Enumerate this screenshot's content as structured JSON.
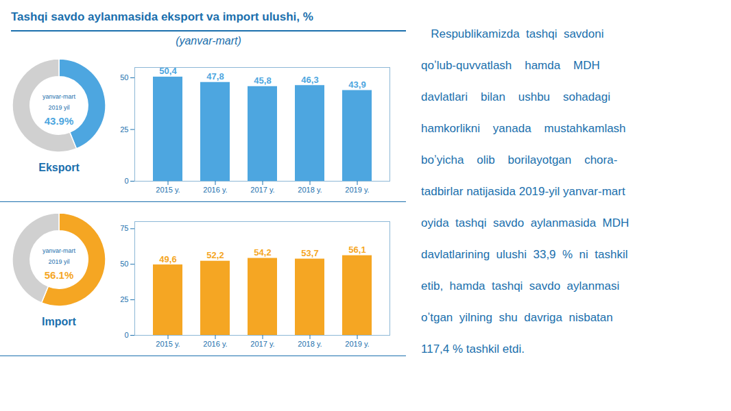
{
  "title": "Tashqi savdo aylanmasida eksport va import ulushi, %",
  "subtitle": "(yanvar-mart)",
  "annotations": [
    "   Respublikamizda  tashqi  savdoni",
    "qoʼlub-quvvatlash    hamda    MDH",
    "davlatlari    bilan    ushbu    sohadagi",
    "hamkorlikni    yanada    mustahkamlash",
    "boʼyicha    olib    borilayotgan    chora-",
    "tadbirlar natijasida 2019-yil yanvar-mart",
    "oyida  tashqi  savdo  aylanmasida  MDH",
    "davlatlarining  ulushi  33,9  %  ni  tashkil",
    "etib,  hamda  tashqi  savdo  aylanmasi",
    "oʼtgan  yilning  shu  davriga  nisbatan",
    "117,4 % tashkil etdi."
  ],
  "chart_data": [
    {
      "type": "pie",
      "title": "Eksport",
      "values": [
        43.9,
        56.1
      ],
      "colors": [
        "#4da6e0",
        "#d0d0d0"
      ],
      "value_labels": [
        "43.9%",
        null
      ],
      "annotations": [
        "yanvar-mart",
        "2019 yil"
      ]
    },
    {
      "type": "bar",
      "categories": [
        "2015 y.",
        "2016 y.",
        "2017 y.",
        "2018 y.",
        "2019 y."
      ],
      "values": [
        50.4,
        47.8,
        45.8,
        46.3,
        43.9
      ],
      "color": "#4da6e0",
      "ylim": [
        0,
        55
      ],
      "yticks": [
        0,
        25,
        50
      ],
      "grid": false,
      "data_labels": true,
      "value_labels": [
        "50,4",
        "47,8",
        "45,8",
        "46,3",
        "43,9"
      ]
    },
    {
      "type": "pie",
      "title": "Import",
      "values": [
        56.1,
        43.9
      ],
      "colors": [
        "#f5a623",
        "#d0d0d0"
      ],
      "value_labels": [
        "56.1%",
        null
      ],
      "annotations": [
        "yanvar-mart",
        "2019 yil"
      ]
    },
    {
      "type": "bar",
      "categories": [
        "2015 y.",
        "2016 y.",
        "2017 y.",
        "2018 y.",
        "2019 y."
      ],
      "values": [
        49.6,
        52.2,
        54.2,
        53.7,
        56.1
      ],
      "color": "#f5a623",
      "ylim": [
        0,
        80
      ],
      "yticks": [
        0,
        25,
        50,
        75
      ],
      "grid": false,
      "data_labels": true,
      "value_labels": [
        "49,6",
        "52,2",
        "54,2",
        "53,7",
        "56,1"
      ]
    }
  ]
}
